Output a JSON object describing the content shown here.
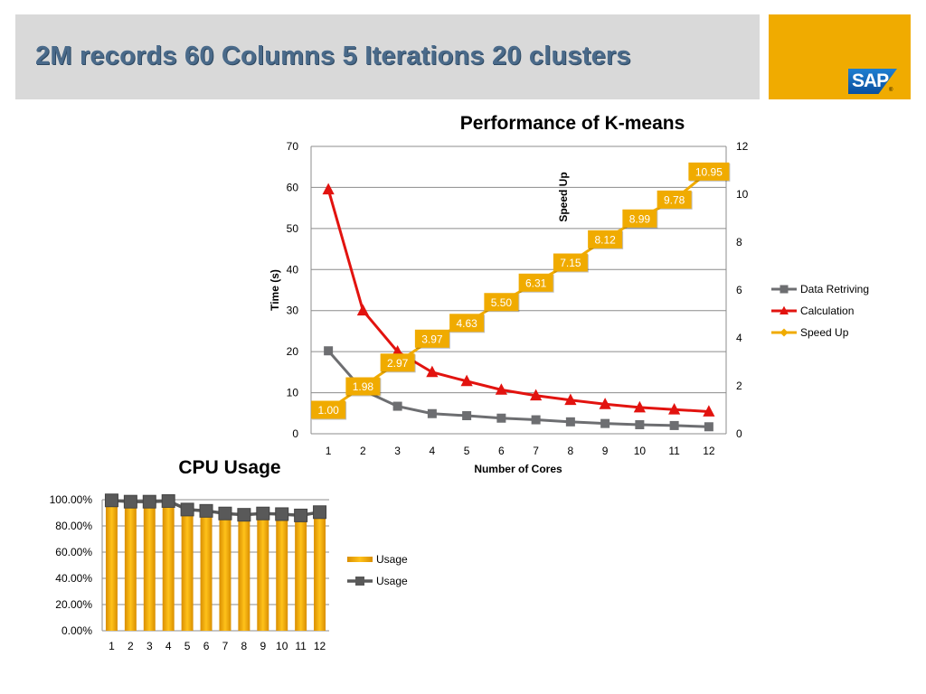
{
  "slide": {
    "title": "2M records 60 Columns 5 Iterations 20 clusters"
  },
  "logo": {
    "text": "SAP",
    "mark": "®"
  },
  "chart_data": [
    {
      "type": "line",
      "title": "Performance of K-means",
      "xlabel": "Number of Cores",
      "ylabel": "Time (s)",
      "y2label": "Speed Up",
      "x": [
        1,
        2,
        3,
        4,
        5,
        6,
        7,
        8,
        9,
        10,
        11,
        12
      ],
      "ylim": [
        0,
        70
      ],
      "y_ticks": [
        "0",
        "10",
        "20",
        "30",
        "40",
        "50",
        "60",
        "70"
      ],
      "y2lim": [
        0,
        12
      ],
      "y2_ticks": [
        "0",
        "2",
        "4",
        "6",
        "8",
        "10",
        "12"
      ],
      "grid": true,
      "legend": "right",
      "series": [
        {
          "name": "Data Retriving",
          "axis": "left",
          "color": "#6d6e71",
          "marker": "square",
          "values": [
            20.2,
            10.6,
            6.7,
            4.9,
            4.4,
            3.8,
            3.4,
            2.9,
            2.5,
            2.2,
            2.0,
            1.7
          ]
        },
        {
          "name": "Calculation",
          "axis": "left",
          "color": "#e2130f",
          "marker": "triangle",
          "values": [
            59.5,
            30.0,
            20.0,
            15.0,
            12.8,
            10.7,
            9.3,
            8.2,
            7.2,
            6.4,
            5.9,
            5.4
          ]
        },
        {
          "name": "Speed Up",
          "axis": "right",
          "color": "#f0ab00",
          "marker": "diamond",
          "values": [
            1.0,
            1.98,
            2.97,
            3.97,
            4.63,
            5.5,
            6.31,
            7.15,
            8.12,
            8.99,
            9.78,
            10.95
          ],
          "labels": [
            "1.00",
            "1.98",
            "2.97",
            "3.97",
            "4.63",
            "5.50",
            "6.31",
            "7.15",
            "8.12",
            "8.99",
            "9.78",
            "10.95"
          ]
        }
      ]
    },
    {
      "type": "bar",
      "title": "CPU Usage",
      "categories": [
        "1",
        "2",
        "3",
        "4",
        "5",
        "6",
        "7",
        "8",
        "9",
        "10",
        "11",
        "12"
      ],
      "ylim": [
        0,
        100
      ],
      "y_ticks": [
        "0.00%",
        "20.00%",
        "40.00%",
        "60.00%",
        "80.00%",
        "100.00%"
      ],
      "grid": true,
      "legend": "right",
      "series": [
        {
          "name": "Usage",
          "type": "bar",
          "color": "#f0ab00",
          "values": [
            99.5,
            98.5,
            98.5,
            99.0,
            92.5,
            91.5,
            89.5,
            88.5,
            89.5,
            89.0,
            88.0,
            90.5
          ]
        },
        {
          "name": "Usage",
          "type": "line",
          "color": "#595959",
          "marker": "square",
          "values": [
            99.5,
            98.5,
            98.5,
            99.0,
            92.5,
            91.5,
            89.5,
            88.5,
            89.5,
            89.0,
            88.0,
            90.5
          ]
        }
      ]
    }
  ]
}
